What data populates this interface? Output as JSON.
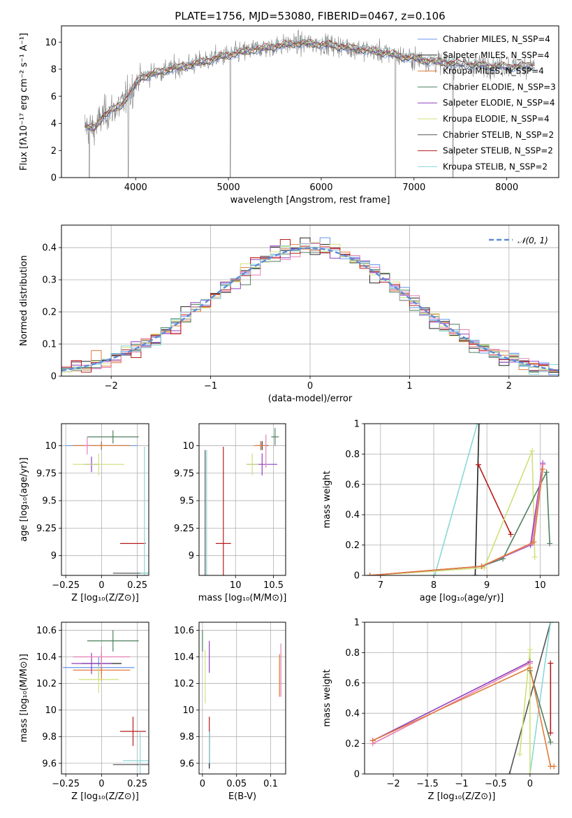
{
  "title": "PLATE=1756, MJD=53080, FIBERID=0467, z=0.106",
  "colors": [
    "#6495ed",
    "#222222",
    "#e07b39",
    "#4f7f5f",
    "#8e3fbf",
    "#cfe07a",
    "#555555",
    "#b71c1c",
    "#8ad7d7",
    "#e57fb5"
  ],
  "chart_data": [
    {
      "id": "spectrum",
      "type": "line",
      "xlabel": "wavelength [Angstrom, rest frame]",
      "ylabel": "Flux [fλ10⁻¹⁷ erg cm⁻² s⁻¹ A⁻¹]",
      "xlim": [
        3200,
        8560
      ],
      "ylim": [
        0,
        11.2
      ],
      "xticks": [
        4000,
        5000,
        6000,
        7000,
        8000
      ],
      "yticks": [
        0,
        2,
        4,
        6,
        8,
        10
      ],
      "grid": false,
      "legend_position": "right",
      "series": [
        {
          "name": "Chabrier MILES, N_SSP=4",
          "color": "#6495ed"
        },
        {
          "name": "Salpeter MILES, N_SSP=4",
          "color": "#222222"
        },
        {
          "name": "Kroupa MILES, N_SSP=4",
          "color": "#e07b39"
        },
        {
          "name": "Chabrier ELODIE, N_SSP=3",
          "color": "#4f7f5f"
        },
        {
          "name": "Salpeter ELODIE, N_SSP=4",
          "color": "#8e3fbf"
        },
        {
          "name": "Kroupa ELODIE, N_SSP=4",
          "color": "#cfe07a"
        },
        {
          "name": "Chabrier STELIB, N_SSP=2",
          "color": "#555555"
        },
        {
          "name": "Salpeter STELIB, N_SSP=2",
          "color": "#b71c1c"
        },
        {
          "name": "Kroupa STELIB, N_SSP=2",
          "color": "#8ad7d7"
        }
      ],
      "model_continuum": [
        [
          3450,
          3.8
        ],
        [
          3550,
          3.6
        ],
        [
          3650,
          4.6
        ],
        [
          3750,
          5.0
        ],
        [
          3850,
          5.4
        ],
        [
          3950,
          6.4
        ],
        [
          4050,
          7.4
        ],
        [
          4150,
          7.6
        ],
        [
          4300,
          7.9
        ],
        [
          4500,
          8.2
        ],
        [
          4700,
          8.5
        ],
        [
          4900,
          8.9
        ],
        [
          5100,
          9.2
        ],
        [
          5300,
          9.5
        ],
        [
          5500,
          9.7
        ],
        [
          5700,
          9.9
        ],
        [
          5900,
          9.9
        ],
        [
          6100,
          9.8
        ],
        [
          6300,
          9.6
        ],
        [
          6500,
          9.4
        ],
        [
          6700,
          9.2
        ],
        [
          6900,
          8.9
        ],
        [
          7100,
          8.7
        ],
        [
          7300,
          8.5
        ],
        [
          7500,
          8.4
        ],
        [
          7700,
          8.3
        ],
        [
          7900,
          8.2
        ],
        [
          8100,
          8.2
        ],
        [
          8300,
          8.3
        ]
      ],
      "data_dips": [
        [
          3500,
          0.0
        ],
        [
          3920,
          0.0
        ],
        [
          5020,
          0.0
        ],
        [
          6800,
          0.0
        ],
        [
          7420,
          0.0
        ]
      ]
    },
    {
      "id": "residuals",
      "type": "area",
      "xlabel": "(data-model)/error",
      "ylabel": "Normed distribution",
      "xlim": [
        -2.5,
        2.5
      ],
      "ylim": [
        0,
        0.47
      ],
      "xticks": [
        -2,
        -1,
        0,
        1,
        2
      ],
      "yticks": [
        0.0,
        0.1,
        0.2,
        0.3,
        0.4
      ],
      "grid": true,
      "legend_position": "top-right",
      "reference_curve": {
        "name": "𝒩(0, 1)",
        "color": "#5b8bd6",
        "style": "dashed"
      },
      "bin_width": 0.1
    },
    {
      "id": "age-vs-Z",
      "type": "scatter",
      "xlabel": "Z [log₁₀(Z/Z⊙)]",
      "ylabel": "age  [log₁₀(age/yr)]",
      "xlim": [
        -0.28,
        0.33
      ],
      "ylim": [
        8.82,
        10.2
      ],
      "xticks": [
        -0.25,
        0.0,
        0.25
      ],
      "yticks": [
        9.0,
        9.25,
        9.5,
        9.75,
        10.0
      ],
      "grid": true,
      "points": [
        {
          "color": "#6495ed",
          "x": 0.0,
          "y": 10.0,
          "xerr": 0.25,
          "yerr": 0.04
        },
        {
          "color": "#222222",
          "x": 0.0,
          "y": 10.0,
          "xerr": 0.2,
          "yerr": 0.03
        },
        {
          "color": "#e07b39",
          "x": 0.0,
          "y": 10.0,
          "xerr": 0.2,
          "yerr": 0.03
        },
        {
          "color": "#4f7f5f",
          "x": 0.08,
          "y": 10.08,
          "xerr": 0.18,
          "yerr": 0.06
        },
        {
          "color": "#8e3fbf",
          "x": -0.07,
          "y": 9.83,
          "xerr": 0.05,
          "yerr": 0.07
        },
        {
          "color": "#cfe07a",
          "x": -0.02,
          "y": 9.83,
          "xerr": 0.18,
          "yerr": 0.1
        },
        {
          "color": "#555555",
          "x": 0.3,
          "y": 8.84,
          "xerr": 0.22,
          "yerr": 0.0
        },
        {
          "color": "#b71c1c",
          "x": 0.22,
          "y": 9.11,
          "xerr": 0.09,
          "yerr": 0.0
        },
        {
          "color": "#8ad7d7",
          "x": 0.3,
          "y": 8.84,
          "xerr": 0.03,
          "yerr": 1.15
        },
        {
          "color": "#e57fb5",
          "x": -0.1,
          "y": 10.0,
          "xerr": 0.02,
          "yerr": 0.08
        }
      ]
    },
    {
      "id": "age-vs-mass",
      "type": "scatter",
      "xlabel": "mass [log₁₀(M/M⊙)]",
      "ylabel": "",
      "xlim": [
        9.52,
        10.66
      ],
      "ylim": [
        8.82,
        10.2
      ],
      "xticks": [
        10.0,
        10.5
      ],
      "yticks": [
        9.0,
        9.25,
        9.5,
        9.75,
        10.0
      ],
      "grid": true,
      "points": [
        {
          "color": "#6495ed",
          "x": 10.33,
          "y": 10.0,
          "xerr": 0.08,
          "yerr": 0.04
        },
        {
          "color": "#222222",
          "x": 10.35,
          "y": 10.0,
          "xerr": 0.08,
          "yerr": 0.04
        },
        {
          "color": "#e07b39",
          "x": 10.33,
          "y": 10.0,
          "xerr": 0.09,
          "yerr": 0.04
        },
        {
          "color": "#4f7f5f",
          "x": 10.52,
          "y": 10.08,
          "xerr": 0.05,
          "yerr": 0.08
        },
        {
          "color": "#8e3fbf",
          "x": 10.35,
          "y": 9.83,
          "xerr": 0.2,
          "yerr": 0.1
        },
        {
          "color": "#cfe07a",
          "x": 10.22,
          "y": 9.83,
          "xerr": 0.08,
          "yerr": 0.1
        },
        {
          "color": "#555555",
          "x": 9.6,
          "y": 8.84,
          "xerr": 0.0,
          "yerr": 1.12
        },
        {
          "color": "#b71c1c",
          "x": 9.84,
          "y": 9.11,
          "xerr": 0.1,
          "yerr": 0.88
        },
        {
          "color": "#8ad7d7",
          "x": 9.62,
          "y": 8.84,
          "xerr": 0.0,
          "yerr": 1.12
        },
        {
          "color": "#e57fb5",
          "x": 10.4,
          "y": 9.95,
          "xerr": 0.0,
          "yerr": 0.15
        }
      ]
    },
    {
      "id": "massweight-vs-age",
      "type": "line",
      "xlabel": "age  [log₁₀(age/yr)]",
      "ylabel": "mass weight",
      "xlim": [
        6.7,
        10.35
      ],
      "ylim": [
        0,
        1.0
      ],
      "xticks": [
        7,
        8,
        9,
        10
      ],
      "yticks": [
        0.0,
        0.2,
        0.4,
        0.6,
        0.8,
        1.0
      ],
      "grid": true,
      "series": [
        {
          "color": "#222222",
          "x": [
            8.78,
            8.85
          ],
          "y": [
            0.0,
            1.0
          ]
        },
        {
          "color": "#8ad7d7",
          "x": [
            8.02,
            8.82
          ],
          "y": [
            0.0,
            1.0
          ]
        },
        {
          "color": "#b71c1c",
          "x": [
            8.84,
            9.45
          ],
          "y": [
            0.73,
            0.27
          ]
        },
        {
          "color": "#cfe07a",
          "x": [
            6.8,
            8.95,
            9.85,
            9.9
          ],
          "y": [
            0.0,
            0.05,
            0.82,
            0.12
          ]
        },
        {
          "color": "#4f7f5f",
          "x": [
            6.8,
            8.9,
            9.3,
            10.12,
            10.18
          ],
          "y": [
            0.0,
            0.06,
            0.11,
            0.68,
            0.21
          ]
        },
        {
          "color": "#8e3fbf",
          "x": [
            6.8,
            8.9,
            9.82,
            10.05
          ],
          "y": [
            0.0,
            0.06,
            0.2,
            0.74
          ]
        },
        {
          "color": "#e57fb5",
          "x": [
            6.8,
            8.9,
            9.85,
            10.05
          ],
          "y": [
            0.0,
            0.06,
            0.21,
            0.73
          ]
        },
        {
          "color": "#e07b39",
          "x": [
            6.8,
            8.9,
            9.88,
            10.05
          ],
          "y": [
            0.0,
            0.06,
            0.22,
            0.7
          ]
        }
      ]
    },
    {
      "id": "mass-vs-Z",
      "type": "scatter",
      "xlabel": "Z [log₁₀(Z/Z⊙)]",
      "ylabel": "mass [log₁₀(M/M⊙)]",
      "xlim": [
        -0.28,
        0.33
      ],
      "ylim": [
        9.52,
        10.66
      ],
      "xticks": [
        -0.25,
        0.0,
        0.25
      ],
      "yticks": [
        9.6,
        9.8,
        10.0,
        10.2,
        10.4,
        10.6
      ],
      "grid": true,
      "points": [
        {
          "color": "#6495ed",
          "x": -0.02,
          "y": 10.32,
          "xerr": 0.25,
          "yerr": 0.08
        },
        {
          "color": "#222222",
          "x": 0.0,
          "y": 10.35,
          "xerr": 0.14,
          "yerr": 0.08
        },
        {
          "color": "#e07b39",
          "x": 0.0,
          "y": 10.3,
          "xerr": 0.2,
          "yerr": 0.08
        },
        {
          "color": "#4f7f5f",
          "x": 0.08,
          "y": 10.52,
          "xerr": 0.18,
          "yerr": 0.08
        },
        {
          "color": "#8e3fbf",
          "x": -0.07,
          "y": 10.35,
          "xerr": 0.14,
          "yerr": 0.08
        },
        {
          "color": "#cfe07a",
          "x": -0.02,
          "y": 10.23,
          "xerr": 0.14,
          "yerr": 0.1
        },
        {
          "color": "#555555",
          "x": 0.23,
          "y": 9.59,
          "xerr": 0.15,
          "yerr": 0.0
        },
        {
          "color": "#b71c1c",
          "x": 0.22,
          "y": 9.84,
          "xerr": 0.09,
          "yerr": 0.11
        },
        {
          "color": "#8ad7d7",
          "x": 0.27,
          "y": 9.62,
          "xerr": 0.12,
          "yerr": 0.22
        },
        {
          "color": "#e57fb5",
          "x": 0.0,
          "y": 10.4,
          "xerr": 0.2,
          "yerr": 0.08
        }
      ]
    },
    {
      "id": "mass-vs-EBV",
      "type": "scatter",
      "xlabel": "E(B-V)",
      "ylabel": "",
      "xlim": [
        -0.005,
        0.122
      ],
      "ylim": [
        9.52,
        10.66
      ],
      "xticks": [
        0.0,
        0.05,
        0.1
      ],
      "yticks": [
        9.6,
        9.8,
        10.0,
        10.2,
        10.4,
        10.6
      ],
      "grid": true,
      "points": [
        {
          "color": "#6495ed",
          "x": 0.01,
          "y": 9.7,
          "xerr": 0.0,
          "yerr": 0.12
        },
        {
          "color": "#222222",
          "x": 0.01,
          "y": 9.7,
          "xerr": 0.0,
          "yerr": 0.14
        },
        {
          "color": "#e07b39",
          "x": 0.113,
          "y": 10.26,
          "xerr": 0.0,
          "yerr": 0.16
        },
        {
          "color": "#4f7f5f",
          "x": 0.0,
          "y": 10.52,
          "xerr": 0.0,
          "yerr": 0.08
        },
        {
          "color": "#8e3fbf",
          "x": 0.01,
          "y": 10.4,
          "xerr": 0.0,
          "yerr": 0.12
        },
        {
          "color": "#cfe07a",
          "x": 0.004,
          "y": 10.25,
          "xerr": 0.0,
          "yerr": 0.2
        },
        {
          "color": "#555555",
          "x": 0.01,
          "y": 9.75,
          "xerr": 0.0,
          "yerr": 0.1
        },
        {
          "color": "#b71c1c",
          "x": 0.01,
          "y": 9.84,
          "xerr": 0.0,
          "yerr": 0.11
        },
        {
          "color": "#8ad7d7",
          "x": 0.01,
          "y": 9.72,
          "xerr": 0.0,
          "yerr": 0.12
        },
        {
          "color": "#e57fb5",
          "x": 0.115,
          "y": 10.3,
          "xerr": 0.0,
          "yerr": 0.2
        }
      ]
    },
    {
      "id": "massweight-vs-Z",
      "type": "line",
      "xlabel": "Z [log₁₀(Z/Z⊙)]",
      "ylabel": "mass weight",
      "xlim": [
        -2.42,
        0.42
      ],
      "ylim": [
        0,
        1.0
      ],
      "xticks": [
        -2.0,
        -1.5,
        -1.0,
        -0.5,
        0.0
      ],
      "yticks": [
        0.0,
        0.2,
        0.4,
        0.6,
        0.8,
        1.0
      ],
      "grid": true,
      "series": [
        {
          "color": "#555555",
          "x": [
            -0.3,
            0.3
          ],
          "y": [
            0.0,
            1.0
          ]
        },
        {
          "color": "#8ad7d7",
          "x": [
            0.0,
            0.3
          ],
          "y": [
            0.0,
            1.0
          ]
        },
        {
          "color": "#b71c1c",
          "x": [
            0.3,
            0.3
          ],
          "y": [
            0.27,
            0.73
          ]
        },
        {
          "color": "#cfe07a",
          "x": [
            -0.15,
            0.0,
            0.0
          ],
          "y": [
            0.13,
            0.82,
            0.0
          ]
        },
        {
          "color": "#4f7f5f",
          "x": [
            0.0,
            0.3
          ],
          "y": [
            0.68,
            0.21
          ]
        },
        {
          "color": "#8e3fbf",
          "x": [
            -2.3,
            0.0
          ],
          "y": [
            0.22,
            0.74
          ]
        },
        {
          "color": "#e57fb5",
          "x": [
            -2.3,
            0.0
          ],
          "y": [
            0.2,
            0.73
          ]
        },
        {
          "color": "#e07b39",
          "x": [
            -2.3,
            0.0,
            0.3,
            0.35
          ],
          "y": [
            0.22,
            0.7,
            0.05,
            0.05
          ]
        }
      ]
    }
  ]
}
